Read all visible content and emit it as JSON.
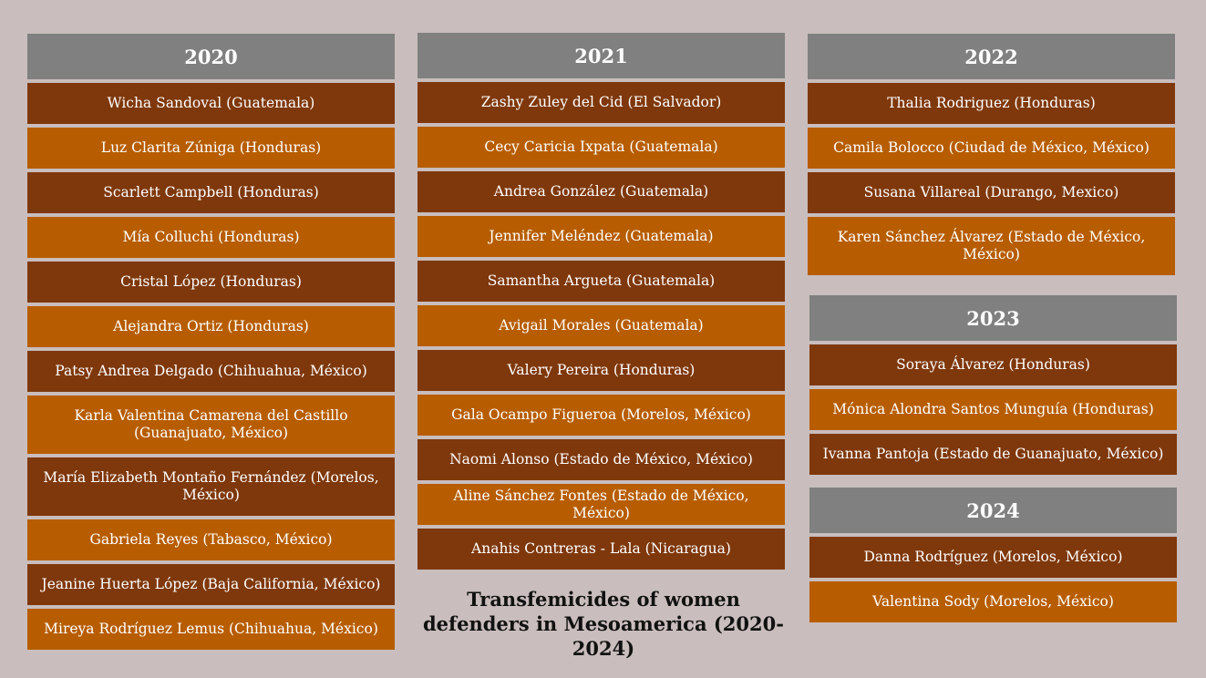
{
  "title": "Transfemicides of women defenders in Mesoamerica (2020-2024)",
  "colors": {
    "background": "#c9bdbd",
    "header": "#808080",
    "dark": "#7f380b",
    "orange": "#b75d00"
  },
  "groups": [
    {
      "year": "2020",
      "names": [
        "Wicha Sandoval (Guatemala)",
        "Luz Clarita Zúniga (Honduras)",
        "Scarlett Campbell (Honduras)",
        "Mía Colluchi (Honduras)",
        "Cristal López (Honduras)",
        "Alejandra Ortiz (Honduras)",
        "Patsy Andrea Delgado (Chihuahua, México)",
        "Karla Valentina Camarena del Castillo (Guanajuato, México)",
        "María Elizabeth Montaño Fernández (Morelos, México)",
        "Gabriela Reyes (Tabasco, México)",
        "Jeanine Huerta López (Baja California, México)",
        "Mireya Rodríguez Lemus (Chihuahua, México)"
      ]
    },
    {
      "year": "2021",
      "names": [
        "Zashy Zuley del Cid (El Salvador)",
        "Cecy Caricia Ixpata (Guatemala)",
        "Andrea González (Guatemala)",
        "Jennifer Meléndez (Guatemala)",
        "Samantha Argueta (Guatemala)",
        "Avigail Morales (Guatemala)",
        "Valery Pereira (Honduras)",
        "Gala Ocampo Figueroa (Morelos, México)",
        "Naomi Alonso (Estado de México, México)",
        "Aline Sánchez Fontes (Estado de México, México)",
        "Anahis Contreras - Lala (Nicaragua)"
      ]
    },
    {
      "year": "2022",
      "names": [
        "Thalia Rodriguez (Honduras)",
        "Camila Bolocco (Ciudad de México, México)",
        "Susana Villareal (Durango, Mexico)",
        "Karen Sánchez Álvarez  (Estado de México, México)"
      ]
    },
    {
      "year": "2023",
      "names": [
        "Soraya Álvarez (Honduras)",
        "Mónica Alondra Santos Munguía (Honduras)",
        "Ivanna Pantoja (Estado de Guanajuato, México)"
      ]
    },
    {
      "year": "2024",
      "names": [
        "Danna Rodríguez (Morelos, México)",
        "Valentina Sody (Morelos, México)"
      ]
    }
  ]
}
